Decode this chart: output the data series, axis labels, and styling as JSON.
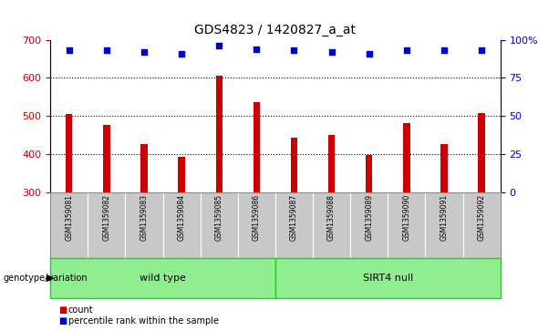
{
  "title": "GDS4823 / 1420827_a_at",
  "samples": [
    "GSM1359081",
    "GSM1359082",
    "GSM1359083",
    "GSM1359084",
    "GSM1359085",
    "GSM1359086",
    "GSM1359087",
    "GSM1359088",
    "GSM1359089",
    "GSM1359090",
    "GSM1359091",
    "GSM1359092"
  ],
  "counts": [
    505,
    475,
    425,
    392,
    605,
    535,
    443,
    450,
    398,
    480,
    427,
    508
  ],
  "percentile_ranks": [
    93,
    93,
    92,
    91,
    96,
    94,
    93,
    92,
    91,
    93,
    93,
    93
  ],
  "y_min": 300,
  "y_max": 700,
  "y_ticks": [
    300,
    400,
    500,
    600,
    700
  ],
  "y2_ticks": [
    0,
    25,
    50,
    75,
    100
  ],
  "bar_color": "#cc0000",
  "dot_color": "#0000cc",
  "wild_type_indices": [
    0,
    1,
    2,
    3,
    4,
    5
  ],
  "sirt4_null_indices": [
    6,
    7,
    8,
    9,
    10,
    11
  ],
  "group_label": "genotype/variation",
  "legend_count_label": "count",
  "legend_pct_label": "percentile rank within the sample",
  "background_color": "#ffffff",
  "sample_bg_color": "#c8c8c8",
  "green_color": "#90ee90",
  "green_border": "#22cc22"
}
